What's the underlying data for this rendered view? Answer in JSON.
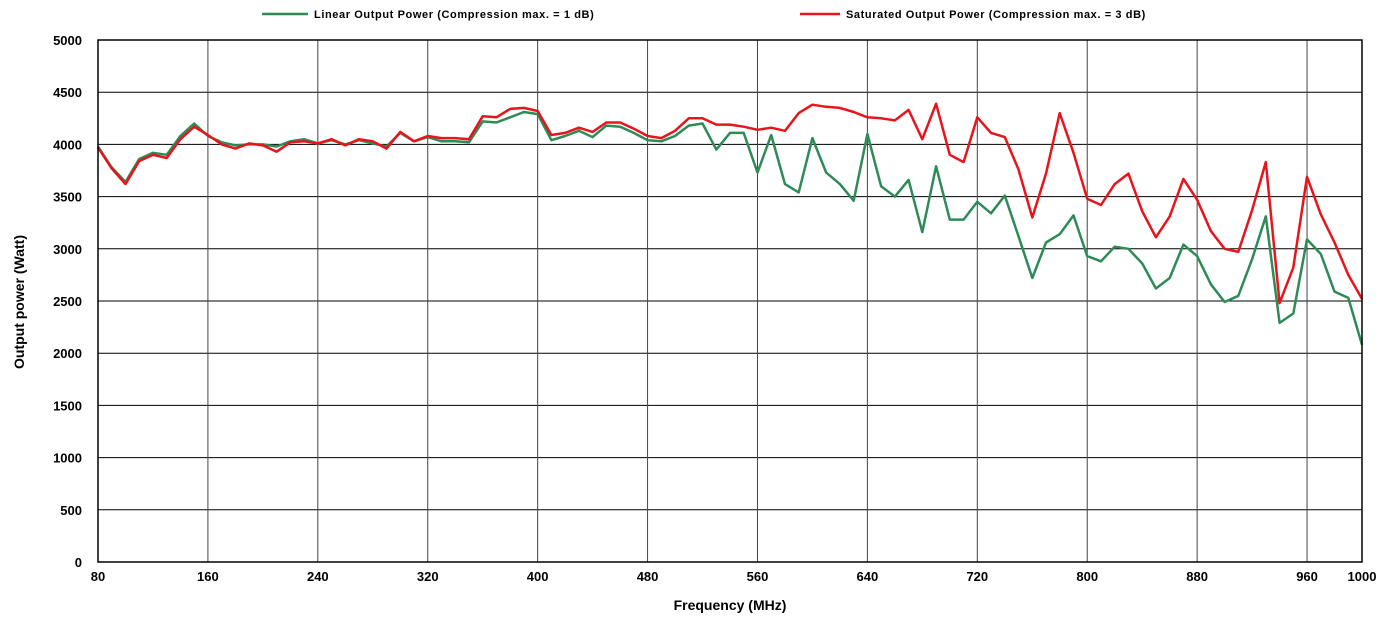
{
  "chart_data": {
    "type": "line",
    "title": "",
    "xlabel": "Frequency (MHz)",
    "ylabel": "Output power (Watt)",
    "xlim": [
      80,
      1000
    ],
    "ylim": [
      0,
      5000
    ],
    "x_ticks": [
      80,
      160,
      240,
      320,
      400,
      480,
      560,
      640,
      720,
      800,
      880,
      960,
      1000
    ],
    "y_ticks": [
      0,
      500,
      1000,
      1500,
      2000,
      2500,
      3000,
      3500,
      4000,
      4500,
      5000
    ],
    "grid": true,
    "legend_position": "top",
    "series": [
      {
        "name": "Linear Output Power (Compression max. =  1 dB)",
        "color": "#2e8b57",
        "x": [
          80,
          90,
          100,
          110,
          120,
          130,
          140,
          150,
          160,
          170,
          180,
          190,
          200,
          210,
          220,
          230,
          240,
          250,
          260,
          270,
          280,
          290,
          300,
          310,
          320,
          330,
          340,
          350,
          360,
          370,
          380,
          390,
          400,
          410,
          420,
          430,
          440,
          450,
          460,
          470,
          480,
          490,
          500,
          510,
          520,
          530,
          540,
          550,
          560,
          570,
          580,
          590,
          600,
          610,
          620,
          630,
          640,
          650,
          660,
          670,
          680,
          690,
          700,
          710,
          720,
          730,
          740,
          750,
          760,
          770,
          780,
          790,
          800,
          810,
          820,
          830,
          840,
          850,
          860,
          870,
          880,
          890,
          900,
          910,
          920,
          930,
          940,
          950,
          960,
          970,
          980,
          990,
          1000
        ],
        "y": [
          3980,
          3780,
          3640,
          3860,
          3920,
          3900,
          4080,
          4200,
          4080,
          4020,
          3990,
          4000,
          4000,
          3980,
          4030,
          4050,
          4010,
          4040,
          4000,
          4040,
          4010,
          3980,
          4110,
          4030,
          4070,
          4030,
          4030,
          4020,
          4220,
          4210,
          4260,
          4310,
          4290,
          4040,
          4080,
          4130,
          4070,
          4180,
          4170,
          4110,
          4040,
          4030,
          4080,
          4180,
          4200,
          3950,
          4110,
          4110,
          3730,
          4090,
          3620,
          3540,
          4060,
          3730,
          3620,
          3460,
          4100,
          3600,
          3500,
          3660,
          3160,
          3790,
          3280,
          3280,
          3450,
          3340,
          3510,
          3120,
          2720,
          3060,
          3140,
          3320,
          2930,
          2880,
          3020,
          3000,
          2860,
          2620,
          2720,
          3040,
          2930,
          2660,
          2490,
          2550,
          2900,
          3310,
          2290,
          2380,
          3090,
          2950,
          2590,
          2530,
          2080
        ]
      },
      {
        "name": "Saturated Output Power (Compression max. =  3 dB)",
        "color": "#e8141c",
        "x": [
          80,
          90,
          100,
          110,
          120,
          130,
          140,
          150,
          160,
          170,
          180,
          190,
          200,
          210,
          220,
          230,
          240,
          250,
          260,
          270,
          280,
          290,
          300,
          310,
          320,
          330,
          340,
          350,
          360,
          370,
          380,
          390,
          400,
          410,
          420,
          430,
          440,
          450,
          460,
          470,
          480,
          490,
          500,
          510,
          520,
          530,
          540,
          550,
          560,
          570,
          580,
          590,
          600,
          610,
          620,
          630,
          640,
          650,
          660,
          670,
          680,
          690,
          700,
          710,
          720,
          730,
          740,
          750,
          760,
          770,
          780,
          790,
          800,
          810,
          820,
          830,
          840,
          850,
          860,
          870,
          880,
          890,
          900,
          910,
          920,
          930,
          940,
          950,
          960,
          970,
          980,
          990,
          1000
        ],
        "y": [
          3970,
          3770,
          3620,
          3840,
          3900,
          3870,
          4050,
          4170,
          4090,
          4000,
          3960,
          4010,
          3990,
          3930,
          4020,
          4030,
          4010,
          4050,
          3990,
          4050,
          4030,
          3960,
          4120,
          4030,
          4080,
          4060,
          4060,
          4050,
          4270,
          4260,
          4340,
          4350,
          4320,
          4090,
          4110,
          4160,
          4120,
          4210,
          4210,
          4150,
          4080,
          4060,
          4130,
          4250,
          4250,
          4190,
          4190,
          4170,
          4140,
          4160,
          4130,
          4300,
          4380,
          4360,
          4350,
          4310,
          4260,
          4250,
          4230,
          4330,
          4050,
          4390,
          3900,
          3830,
          4260,
          4110,
          4070,
          3760,
          3300,
          3720,
          4300,
          3920,
          3480,
          3420,
          3620,
          3720,
          3360,
          3110,
          3310,
          3670,
          3470,
          3170,
          3000,
          2970,
          3370,
          3830,
          2480,
          2820,
          3690,
          3330,
          3060,
          2750,
          2520
        ]
      }
    ]
  }
}
